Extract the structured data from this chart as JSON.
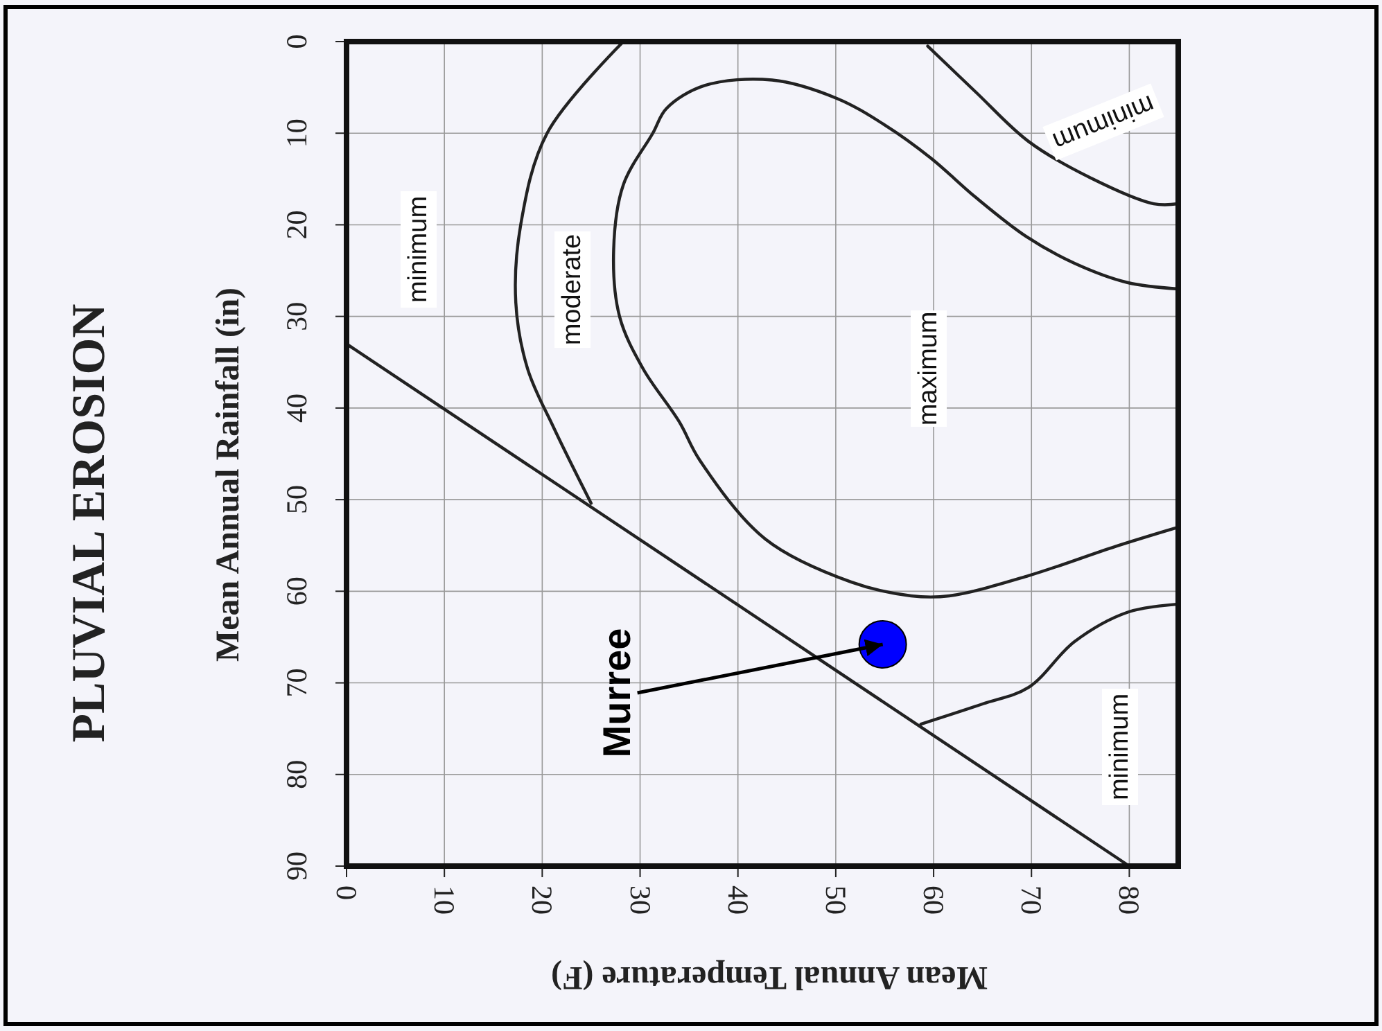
{
  "chart_data": {
    "type": "line",
    "title": "PLUVIAL EROSION",
    "xlabel": "Mean Annual Temperature (F)",
    "ylabel": "Mean Annual Rainfall (in)",
    "xlim": [
      0,
      85
    ],
    "xticks": [
      0,
      10,
      20,
      30,
      40,
      50,
      60,
      70,
      80
    ],
    "ylim": [
      90,
      0
    ],
    "yticks": [
      0,
      10,
      20,
      30,
      40,
      50,
      60,
      70,
      80,
      90
    ],
    "grid": true,
    "line_style": "solid",
    "series": [
      {
        "color": "#222222",
        "x": [
          0,
          80
        ],
        "values": [
          33,
          90
        ]
      },
      {
        "color": "#222222",
        "x": [
          28.3,
          20.5,
          17.8,
          17.3,
          18.5,
          21.2,
          25
        ],
        "values": [
          0,
          10,
          20,
          28.5,
          35.7,
          42.2,
          50.4
        ]
      },
      {
        "color": "#222222",
        "x": [
          85,
          79.8,
          74.4,
          69.5,
          64.3,
          59.7,
          55,
          50.1,
          43.5,
          36.6,
          32.7,
          31.3,
          28.3,
          27.3,
          27.9,
          30.3,
          34,
          36.1,
          42.8,
          51.6,
          57.7,
          61.6,
          69.7,
          78.6,
          85
        ],
        "values": [
          27,
          26.3,
          24.2,
          21.3,
          17,
          12.7,
          9.1,
          6.2,
          4.2,
          4.8,
          7.3,
          10,
          15.6,
          22.7,
          30,
          35.7,
          41.5,
          45.7,
          54.3,
          59,
          60.5,
          60.5,
          58.3,
          55.1,
          53
        ]
      },
      {
        "color": "#222222",
        "x": [
          59.4,
          64.3,
          69.7,
          75.9,
          82.5,
          85
        ],
        "values": [
          0.5,
          5.5,
          10.9,
          14.8,
          17.7,
          17.7
        ]
      },
      {
        "color": "#222222",
        "x": [
          58.7,
          65,
          69.7,
          74.4,
          79.8,
          85
        ],
        "values": [
          74.5,
          72.3,
          70.5,
          65.5,
          62.3,
          61.4
        ]
      },
      {
        "type": "scatter",
        "color": "#0000ff",
        "marker": "circle",
        "x": [
          54.8
        ],
        "values": [
          65.8
        ]
      }
    ],
    "annotations": [
      "minimum",
      "moderate",
      "maximum",
      "minimum",
      "minimum",
      {
        "text": "Murree",
        "x": 54.8,
        "y": 65.8
      }
    ]
  }
}
